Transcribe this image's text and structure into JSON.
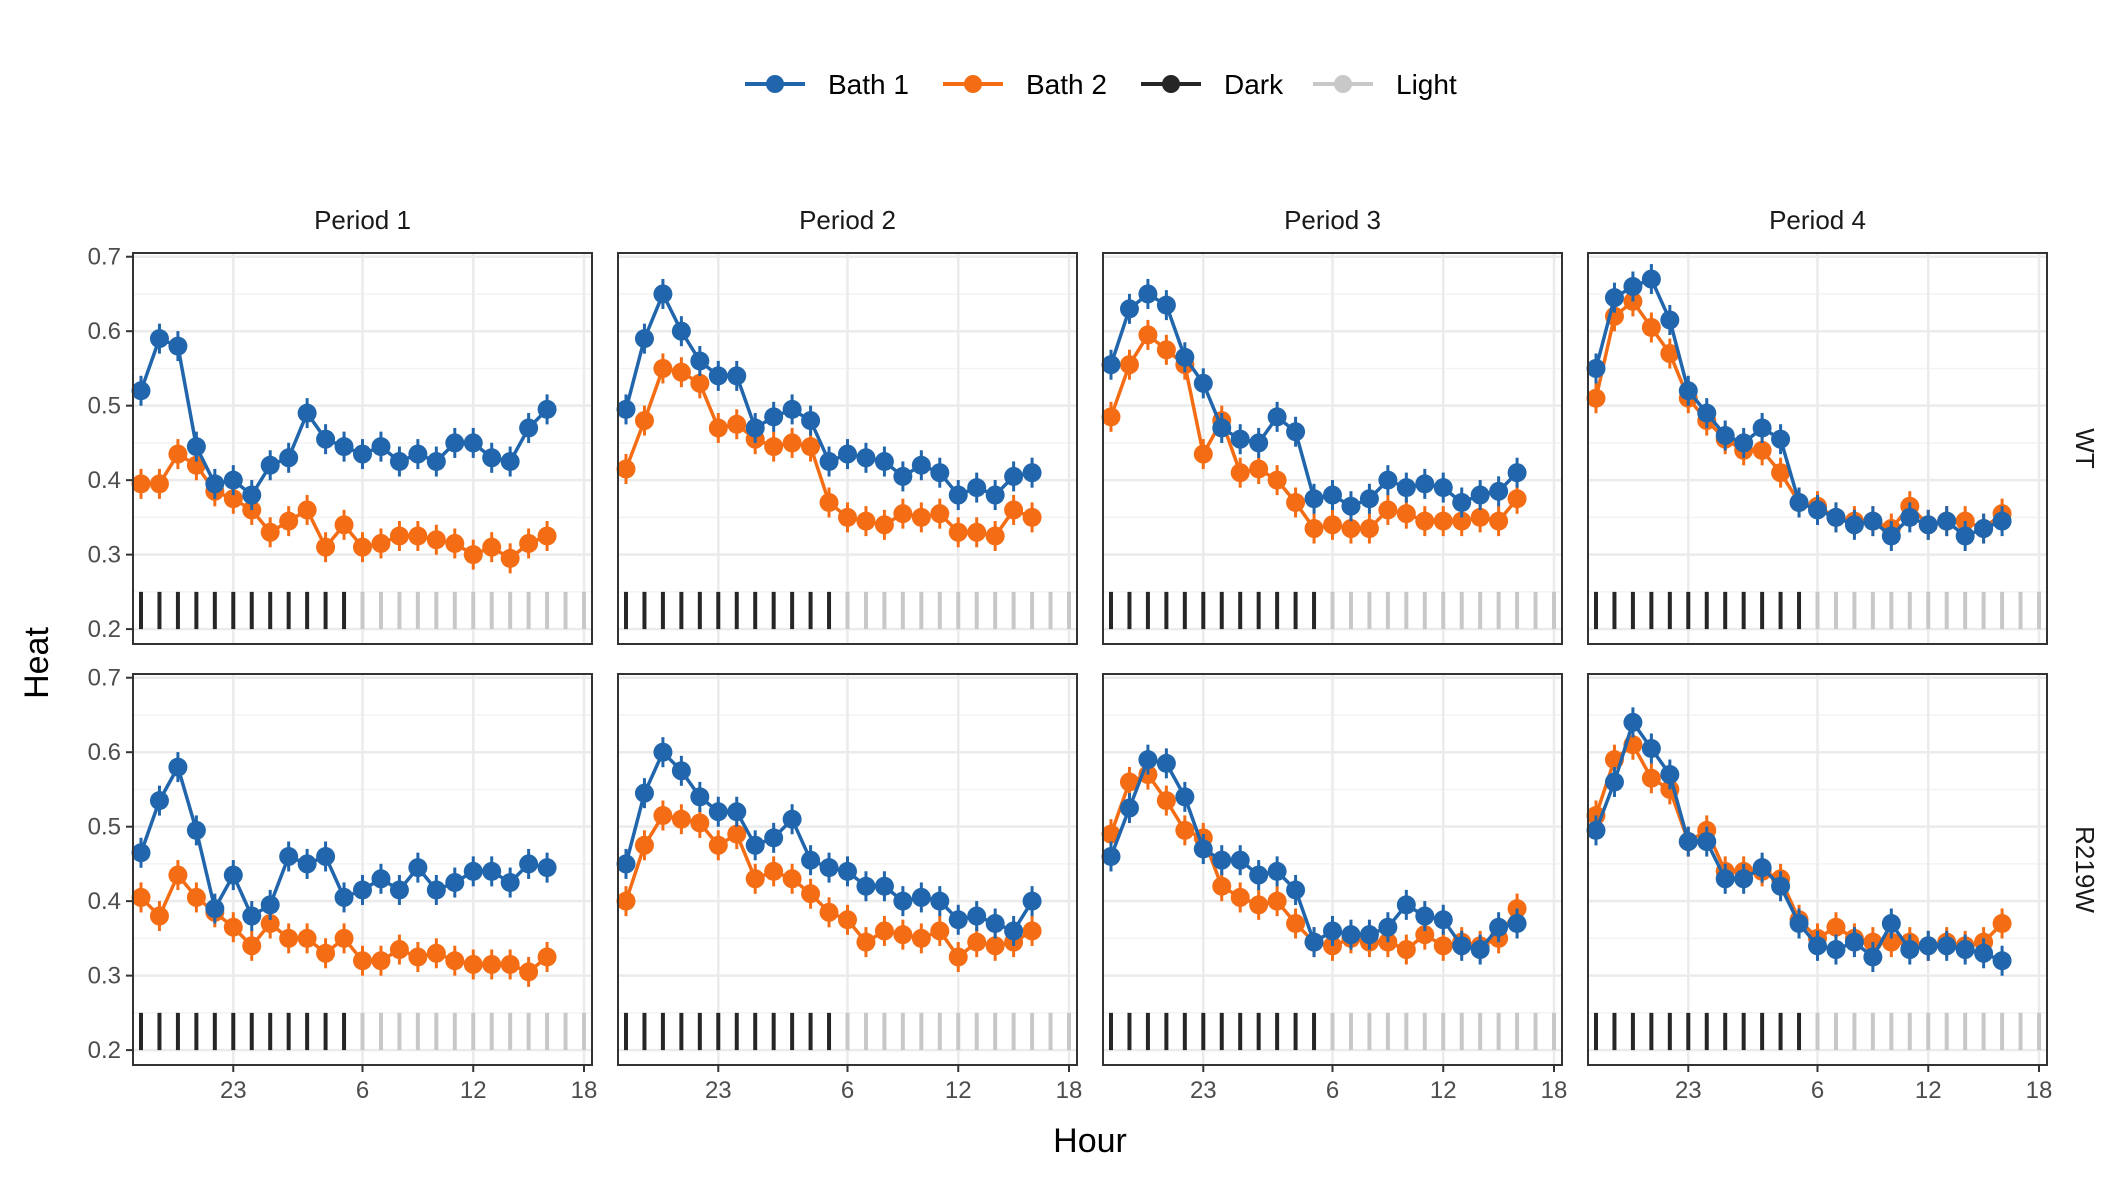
{
  "chart_data": {
    "type": "line",
    "xlabel": "Hour",
    "ylabel": "Heat",
    "ylim": [
      0.18,
      0.705
    ],
    "y_ticks": [
      "0.2",
      "0.3",
      "0.4",
      "0.5",
      "0.6",
      "0.7"
    ],
    "y_tick_values": [
      0.2,
      0.3,
      0.4,
      0.5,
      0.6,
      0.7
    ],
    "x_ticks": [
      "23",
      "6",
      "12",
      "18"
    ],
    "x_tick_hours": [
      23,
      6,
      12,
      18
    ],
    "hours": [
      18,
      19,
      20,
      21,
      22,
      23,
      0,
      1,
      2,
      3,
      4,
      5,
      6,
      7,
      8,
      9,
      10,
      11,
      12,
      13,
      14,
      15,
      16,
      17,
      18
    ],
    "dark_hours": [
      18,
      19,
      20,
      21,
      22,
      23,
      0,
      1,
      2,
      3,
      4,
      5
    ],
    "columns": [
      "Period 1",
      "Period 2",
      "Period 3",
      "Period 4"
    ],
    "rows": [
      "WT",
      "R219W"
    ],
    "legend": {
      "position": "top",
      "items": [
        {
          "label": "Bath 1",
          "color": "#2166ac",
          "kind": "point-line"
        },
        {
          "label": "Bath 2",
          "color": "#f46d15",
          "kind": "point-line"
        },
        {
          "label": "Dark",
          "color": "#262626",
          "kind": "line"
        },
        {
          "label": "Light",
          "color": "#c8c8c8",
          "kind": "line"
        }
      ]
    },
    "grid": true,
    "panels": [
      {
        "row": "WT",
        "column": "Period 1",
        "series": [
          {
            "name": "Bath 1",
            "values": [
              0.52,
              0.59,
              0.58,
              0.445,
              0.395,
              0.4,
              0.38,
              0.42,
              0.43,
              0.49,
              0.455,
              0.445,
              0.435,
              0.445,
              0.425,
              0.435,
              0.425,
              0.45,
              0.45,
              0.43,
              0.425,
              0.47,
              0.495
            ]
          },
          {
            "name": "Bath 2",
            "values": [
              0.395,
              0.395,
              0.435,
              0.42,
              0.385,
              0.375,
              0.36,
              0.33,
              0.345,
              0.36,
              0.31,
              0.34,
              0.31,
              0.315,
              0.325,
              0.325,
              0.32,
              0.315,
              0.3,
              0.31,
              0.295,
              0.315,
              0.325
            ]
          }
        ]
      },
      {
        "row": "WT",
        "column": "Period 2",
        "series": [
          {
            "name": "Bath 1",
            "values": [
              0.495,
              0.59,
              0.65,
              0.6,
              0.56,
              0.54,
              0.54,
              0.47,
              0.485,
              0.495,
              0.48,
              0.425,
              0.435,
              0.43,
              0.425,
              0.405,
              0.42,
              0.41,
              0.38,
              0.39,
              0.38,
              0.405,
              0.41
            ]
          },
          {
            "name": "Bath 2",
            "values": [
              0.415,
              0.48,
              0.55,
              0.545,
              0.53,
              0.47,
              0.475,
              0.455,
              0.445,
              0.45,
              0.445,
              0.37,
              0.35,
              0.345,
              0.34,
              0.355,
              0.35,
              0.355,
              0.33,
              0.33,
              0.325,
              0.36,
              0.35
            ]
          }
        ]
      },
      {
        "row": "WT",
        "column": "Period 3",
        "series": [
          {
            "name": "Bath 1",
            "values": [
              0.555,
              0.63,
              0.65,
              0.635,
              0.565,
              0.53,
              0.47,
              0.455,
              0.45,
              0.485,
              0.465,
              0.375,
              0.38,
              0.365,
              0.375,
              0.4,
              0.39,
              0.395,
              0.39,
              0.37,
              0.38,
              0.385,
              0.41
            ]
          },
          {
            "name": "Bath 2",
            "values": [
              0.485,
              0.555,
              0.595,
              0.575,
              0.555,
              0.435,
              0.48,
              0.41,
              0.415,
              0.4,
              0.37,
              0.335,
              0.34,
              0.335,
              0.335,
              0.36,
              0.355,
              0.345,
              0.345,
              0.345,
              0.35,
              0.345,
              0.375
            ]
          }
        ]
      },
      {
        "row": "WT",
        "column": "Period 4",
        "series": [
          {
            "name": "Bath 1",
            "values": [
              0.55,
              0.645,
              0.66,
              0.67,
              0.615,
              0.52,
              0.49,
              0.46,
              0.45,
              0.47,
              0.455,
              0.37,
              0.36,
              0.35,
              0.34,
              0.345,
              0.325,
              0.35,
              0.34,
              0.345,
              0.325,
              0.335,
              0.345
            ]
          },
          {
            "name": "Bath 2",
            "values": [
              0.51,
              0.62,
              0.64,
              0.605,
              0.57,
              0.51,
              0.48,
              0.455,
              0.44,
              0.44,
              0.41,
              0.37,
              0.365,
              0.35,
              0.345,
              0.345,
              0.335,
              0.365,
              0.34,
              0.345,
              0.345,
              0.335,
              0.355
            ]
          }
        ]
      },
      {
        "row": "R219W",
        "column": "Period 1",
        "series": [
          {
            "name": "Bath 1",
            "values": [
              0.465,
              0.535,
              0.58,
              0.495,
              0.39,
              0.435,
              0.38,
              0.395,
              0.46,
              0.45,
              0.46,
              0.405,
              0.415,
              0.43,
              0.415,
              0.445,
              0.415,
              0.425,
              0.44,
              0.44,
              0.425,
              0.45,
              0.445
            ]
          },
          {
            "name": "Bath 2",
            "values": [
              0.405,
              0.38,
              0.435,
              0.405,
              0.385,
              0.365,
              0.34,
              0.37,
              0.35,
              0.35,
              0.33,
              0.35,
              0.32,
              0.32,
              0.335,
              0.325,
              0.33,
              0.32,
              0.315,
              0.315,
              0.315,
              0.305,
              0.325
            ]
          }
        ]
      },
      {
        "row": "R219W",
        "column": "Period 2",
        "series": [
          {
            "name": "Bath 1",
            "values": [
              0.45,
              0.545,
              0.6,
              0.575,
              0.54,
              0.52,
              0.52,
              0.475,
              0.485,
              0.51,
              0.455,
              0.445,
              0.44,
              0.42,
              0.42,
              0.4,
              0.405,
              0.4,
              0.375,
              0.38,
              0.37,
              0.36,
              0.4
            ]
          },
          {
            "name": "Bath 2",
            "values": [
              0.4,
              0.475,
              0.515,
              0.51,
              0.505,
              0.475,
              0.49,
              0.43,
              0.44,
              0.43,
              0.41,
              0.385,
              0.375,
              0.345,
              0.36,
              0.355,
              0.35,
              0.36,
              0.325,
              0.345,
              0.34,
              0.345,
              0.36
            ]
          }
        ]
      },
      {
        "row": "R219W",
        "column": "Period 3",
        "series": [
          {
            "name": "Bath 1",
            "values": [
              0.46,
              0.525,
              0.59,
              0.585,
              0.54,
              0.47,
              0.455,
              0.455,
              0.435,
              0.44,
              0.415,
              0.345,
              0.36,
              0.355,
              0.355,
              0.365,
              0.395,
              0.38,
              0.375,
              0.34,
              0.335,
              0.365,
              0.37
            ]
          },
          {
            "name": "Bath 2",
            "values": [
              0.49,
              0.56,
              0.57,
              0.535,
              0.495,
              0.485,
              0.42,
              0.405,
              0.395,
              0.4,
              0.37,
              0.345,
              0.34,
              0.35,
              0.345,
              0.345,
              0.335,
              0.355,
              0.34,
              0.345,
              0.34,
              0.35,
              0.39
            ]
          }
        ]
      },
      {
        "row": "R219W",
        "column": "Period 4",
        "series": [
          {
            "name": "Bath 1",
            "values": [
              0.495,
              0.56,
              0.64,
              0.605,
              0.57,
              0.48,
              0.48,
              0.43,
              0.43,
              0.445,
              0.42,
              0.37,
              0.34,
              0.335,
              0.345,
              0.325,
              0.37,
              0.335,
              0.34,
              0.34,
              0.335,
              0.33,
              0.32
            ]
          },
          {
            "name": "Bath 2",
            "values": [
              0.515,
              0.59,
              0.61,
              0.565,
              0.55,
              0.48,
              0.495,
              0.44,
              0.44,
              0.44,
              0.43,
              0.375,
              0.35,
              0.365,
              0.35,
              0.345,
              0.345,
              0.345,
              0.34,
              0.345,
              0.34,
              0.345,
              0.37
            ]
          }
        ]
      }
    ]
  }
}
